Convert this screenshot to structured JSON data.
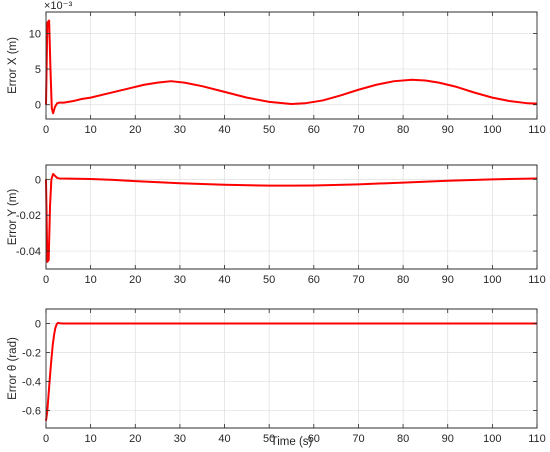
{
  "chart_data": [
    {
      "type": "line",
      "ylabel": "Error X (m)",
      "xlabel": "",
      "xlim": [
        0,
        110
      ],
      "ylim": [
        -2,
        13
      ],
      "x_ticks": [
        0,
        10,
        20,
        30,
        40,
        50,
        60,
        70,
        80,
        90,
        100,
        110
      ],
      "x_tick_labels": [
        "0",
        "10",
        "20",
        "30",
        "40",
        "50",
        "60",
        "70",
        "80",
        "90",
        "100",
        "110"
      ],
      "y_ticks": [
        0,
        5,
        10
      ],
      "y_tick_labels": [
        "0",
        "5",
        "10"
      ],
      "y_exponent_label": "×10⁻³",
      "grid": true,
      "color": "#ff0000",
      "series": [
        {
          "x": [
            0,
            0.3,
            0.7,
            1.0,
            1.3,
            1.6,
            2.0,
            2.5,
            3,
            4,
            6,
            8,
            10,
            14,
            18,
            22,
            25,
            28,
            31,
            35,
            40,
            45,
            50,
            55,
            58,
            62,
            66,
            70,
            74,
            78,
            82,
            85,
            88,
            92,
            96,
            100,
            104,
            108,
            110
          ],
          "y": [
            0,
            11.5,
            11.8,
            5,
            -0.5,
            -1.2,
            -0.3,
            0.2,
            0.3,
            0.3,
            0.5,
            0.8,
            1.0,
            1.6,
            2.2,
            2.8,
            3.1,
            3.3,
            3.1,
            2.6,
            1.8,
            1.0,
            0.4,
            0.1,
            0.2,
            0.6,
            1.3,
            2.1,
            2.8,
            3.3,
            3.5,
            3.4,
            3.1,
            2.5,
            1.7,
            1.0,
            0.5,
            0.2,
            0.15
          ]
        }
      ]
    },
    {
      "type": "line",
      "ylabel": "Error Y (m)",
      "xlabel": "",
      "xlim": [
        0,
        110
      ],
      "ylim": [
        -0.05,
        0.008
      ],
      "x_ticks": [
        0,
        10,
        20,
        30,
        40,
        50,
        60,
        70,
        80,
        90,
        100,
        110
      ],
      "x_tick_labels": [
        "0",
        "10",
        "20",
        "30",
        "40",
        "50",
        "60",
        "70",
        "80",
        "90",
        "100",
        "110"
      ],
      "y_ticks": [
        -0.04,
        -0.02,
        0
      ],
      "y_tick_labels": [
        "-0.04",
        "-0.02",
        "0"
      ],
      "grid": true,
      "color": "#ff0000",
      "series": [
        {
          "x": [
            0,
            0.3,
            0.6,
            0.9,
            1.2,
            1.6,
            2.0,
            2.5,
            3,
            5,
            10,
            15,
            20,
            30,
            40,
            50,
            55,
            60,
            70,
            80,
            90,
            100,
            110
          ],
          "y": [
            0,
            -0.046,
            -0.045,
            -0.015,
            0,
            0.003,
            0.002,
            0.0008,
            0.0005,
            0.0004,
            0.0002,
            -0.0003,
            -0.001,
            -0.0022,
            -0.003,
            -0.0035,
            -0.0035,
            -0.0034,
            -0.0028,
            -0.0018,
            -0.0008,
            0.0,
            0.0005
          ]
        }
      ]
    },
    {
      "type": "line",
      "ylabel": "Error θ (rad)",
      "xlabel": "Time (s)",
      "xlim": [
        0,
        110
      ],
      "ylim": [
        -0.72,
        0.1
      ],
      "x_ticks": [
        0,
        10,
        20,
        30,
        40,
        50,
        60,
        70,
        80,
        90,
        100,
        110
      ],
      "x_tick_labels": [
        "0",
        "10",
        "20",
        "30",
        "40",
        "50",
        "60",
        "70",
        "80",
        "90",
        "100",
        "110"
      ],
      "y_ticks": [
        -0.6,
        -0.4,
        -0.2,
        0
      ],
      "y_tick_labels": [
        "-0.6",
        "-0.4",
        "-0.2",
        "0"
      ],
      "grid": true,
      "color": "#ff0000",
      "series": [
        {
          "x": [
            0,
            0.3,
            0.6,
            0.9,
            1.2,
            1.5,
            1.8,
            2.1,
            2.4,
            2.7,
            3.0,
            4,
            10,
            30,
            60,
            90,
            110
          ],
          "y": [
            -0.67,
            -0.6,
            -0.48,
            -0.36,
            -0.25,
            -0.15,
            -0.08,
            -0.03,
            -0.005,
            0.005,
            0.002,
            0,
            0,
            0,
            0,
            0,
            0
          ]
        }
      ]
    }
  ]
}
